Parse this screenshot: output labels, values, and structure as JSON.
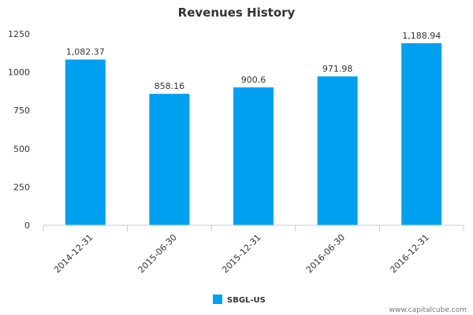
{
  "chart_data": {
    "type": "bar",
    "title": "Revenues History",
    "categories": [
      "2014-12-31",
      "2015-06-30",
      "2015-12-31",
      "2016-06-30",
      "2016-12-31"
    ],
    "series": [
      {
        "name": "SBGL-US",
        "values": [
          1082.37,
          858.16,
          900.6,
          971.98,
          1188.94
        ],
        "labels": [
          "1,082.37",
          "858.16",
          "900.6",
          "971.98",
          "1,188.94"
        ],
        "color": "#00a0f0"
      }
    ],
    "ylim": [
      0,
      1250
    ],
    "yticks": [
      0,
      250,
      500,
      750,
      1000,
      1250
    ],
    "xlabel": "",
    "ylabel": "",
    "grid": false,
    "legend_position": "bottom-center"
  },
  "credit": "www.capitalcube.com"
}
